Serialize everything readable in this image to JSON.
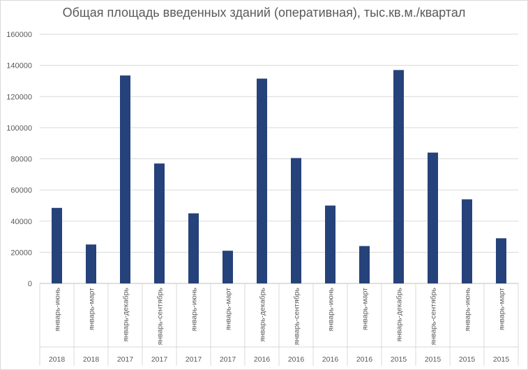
{
  "chart_data": {
    "type": "bar",
    "title": "Общая площадь введенных зданий (оперативная), тыс.кв.м./квартал",
    "xlabel": "",
    "ylabel": "",
    "ylim": [
      0,
      160000
    ],
    "yticks": [
      0,
      20000,
      40000,
      60000,
      80000,
      100000,
      120000,
      140000,
      160000
    ],
    "grid": true,
    "legend": "none",
    "bar_color": "#26427a",
    "categories": [
      {
        "period": "январь-июнь",
        "year": "2018"
      },
      {
        "period": "январь-март",
        "year": "2018"
      },
      {
        "period": "январь-декабрь",
        "year": "2017"
      },
      {
        "period": "январь-сентябрь",
        "year": "2017"
      },
      {
        "period": "январь-июнь",
        "year": "2017"
      },
      {
        "period": "январь-март",
        "year": "2017"
      },
      {
        "period": "январь-декабрь",
        "year": "2016"
      },
      {
        "period": "январь-сентябрь",
        "year": "2016"
      },
      {
        "period": "январь-июнь",
        "year": "2016"
      },
      {
        "period": "январь-март",
        "year": "2016"
      },
      {
        "period": "январь-декабрь",
        "year": "2015"
      },
      {
        "period": "январь-сентябрь",
        "year": "2015"
      },
      {
        "period": "январь-июнь",
        "year": "2015"
      },
      {
        "period": "январь-март",
        "year": "2015"
      }
    ],
    "values": [
      48500,
      25000,
      133500,
      77000,
      45000,
      21000,
      131500,
      80500,
      50000,
      24000,
      137000,
      84000,
      54000,
      29000
    ]
  }
}
